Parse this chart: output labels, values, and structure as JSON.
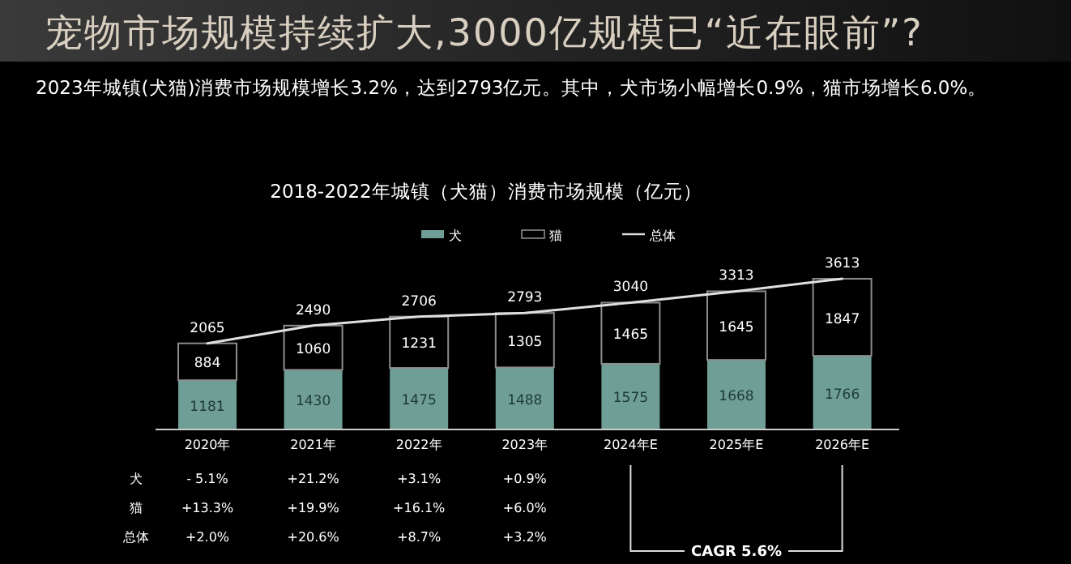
{
  "chart_data": {
    "type": "bar",
    "stacked": true,
    "title": "宠物市场规模持续扩大,3000亿规模已“近在眼前”?",
    "subtitle": "2023年城镇(犬猫)消费市场规模增长3.2%，达到2793亿元。其中，犬市场小幅增长0.9%，猫市场增长6.0%。",
    "categories": [
      "2020年",
      "2021年",
      "2022年",
      "2023年",
      "2024年E",
      "2025年E",
      "2026年E"
    ],
    "series": [
      {
        "name": "犬",
        "color": "#6f9e96",
        "values": [
          1181,
          1430,
          1475,
          1488,
          1575,
          1668,
          1766
        ]
      },
      {
        "name": "猫",
        "color": "#000000",
        "values": [
          884,
          1060,
          1231,
          1305,
          1465,
          1645,
          1847
        ]
      },
      {
        "name": "总体",
        "type": "line",
        "color": "#e0e0e0",
        "values": [
          2065,
          2490,
          2706,
          2793,
          3040,
          3313,
          3613
        ]
      }
    ],
    "data_labels": true,
    "legend": "top",
    "annotations": [
      "2018-2022年城镇（犬猫）消费市场规模（亿元）",
      "犬",
      "猫",
      "总体",
      "- 5.1%",
      "+13.3%",
      "+2.0%",
      "+21.2%",
      "+19.9%",
      "+20.6%",
      "+3.1%",
      "+16.1%",
      "+8.7%",
      "+0.9%",
      "+6.0%",
      "+3.2%",
      "CAGR 5.6%"
    ]
  }
}
